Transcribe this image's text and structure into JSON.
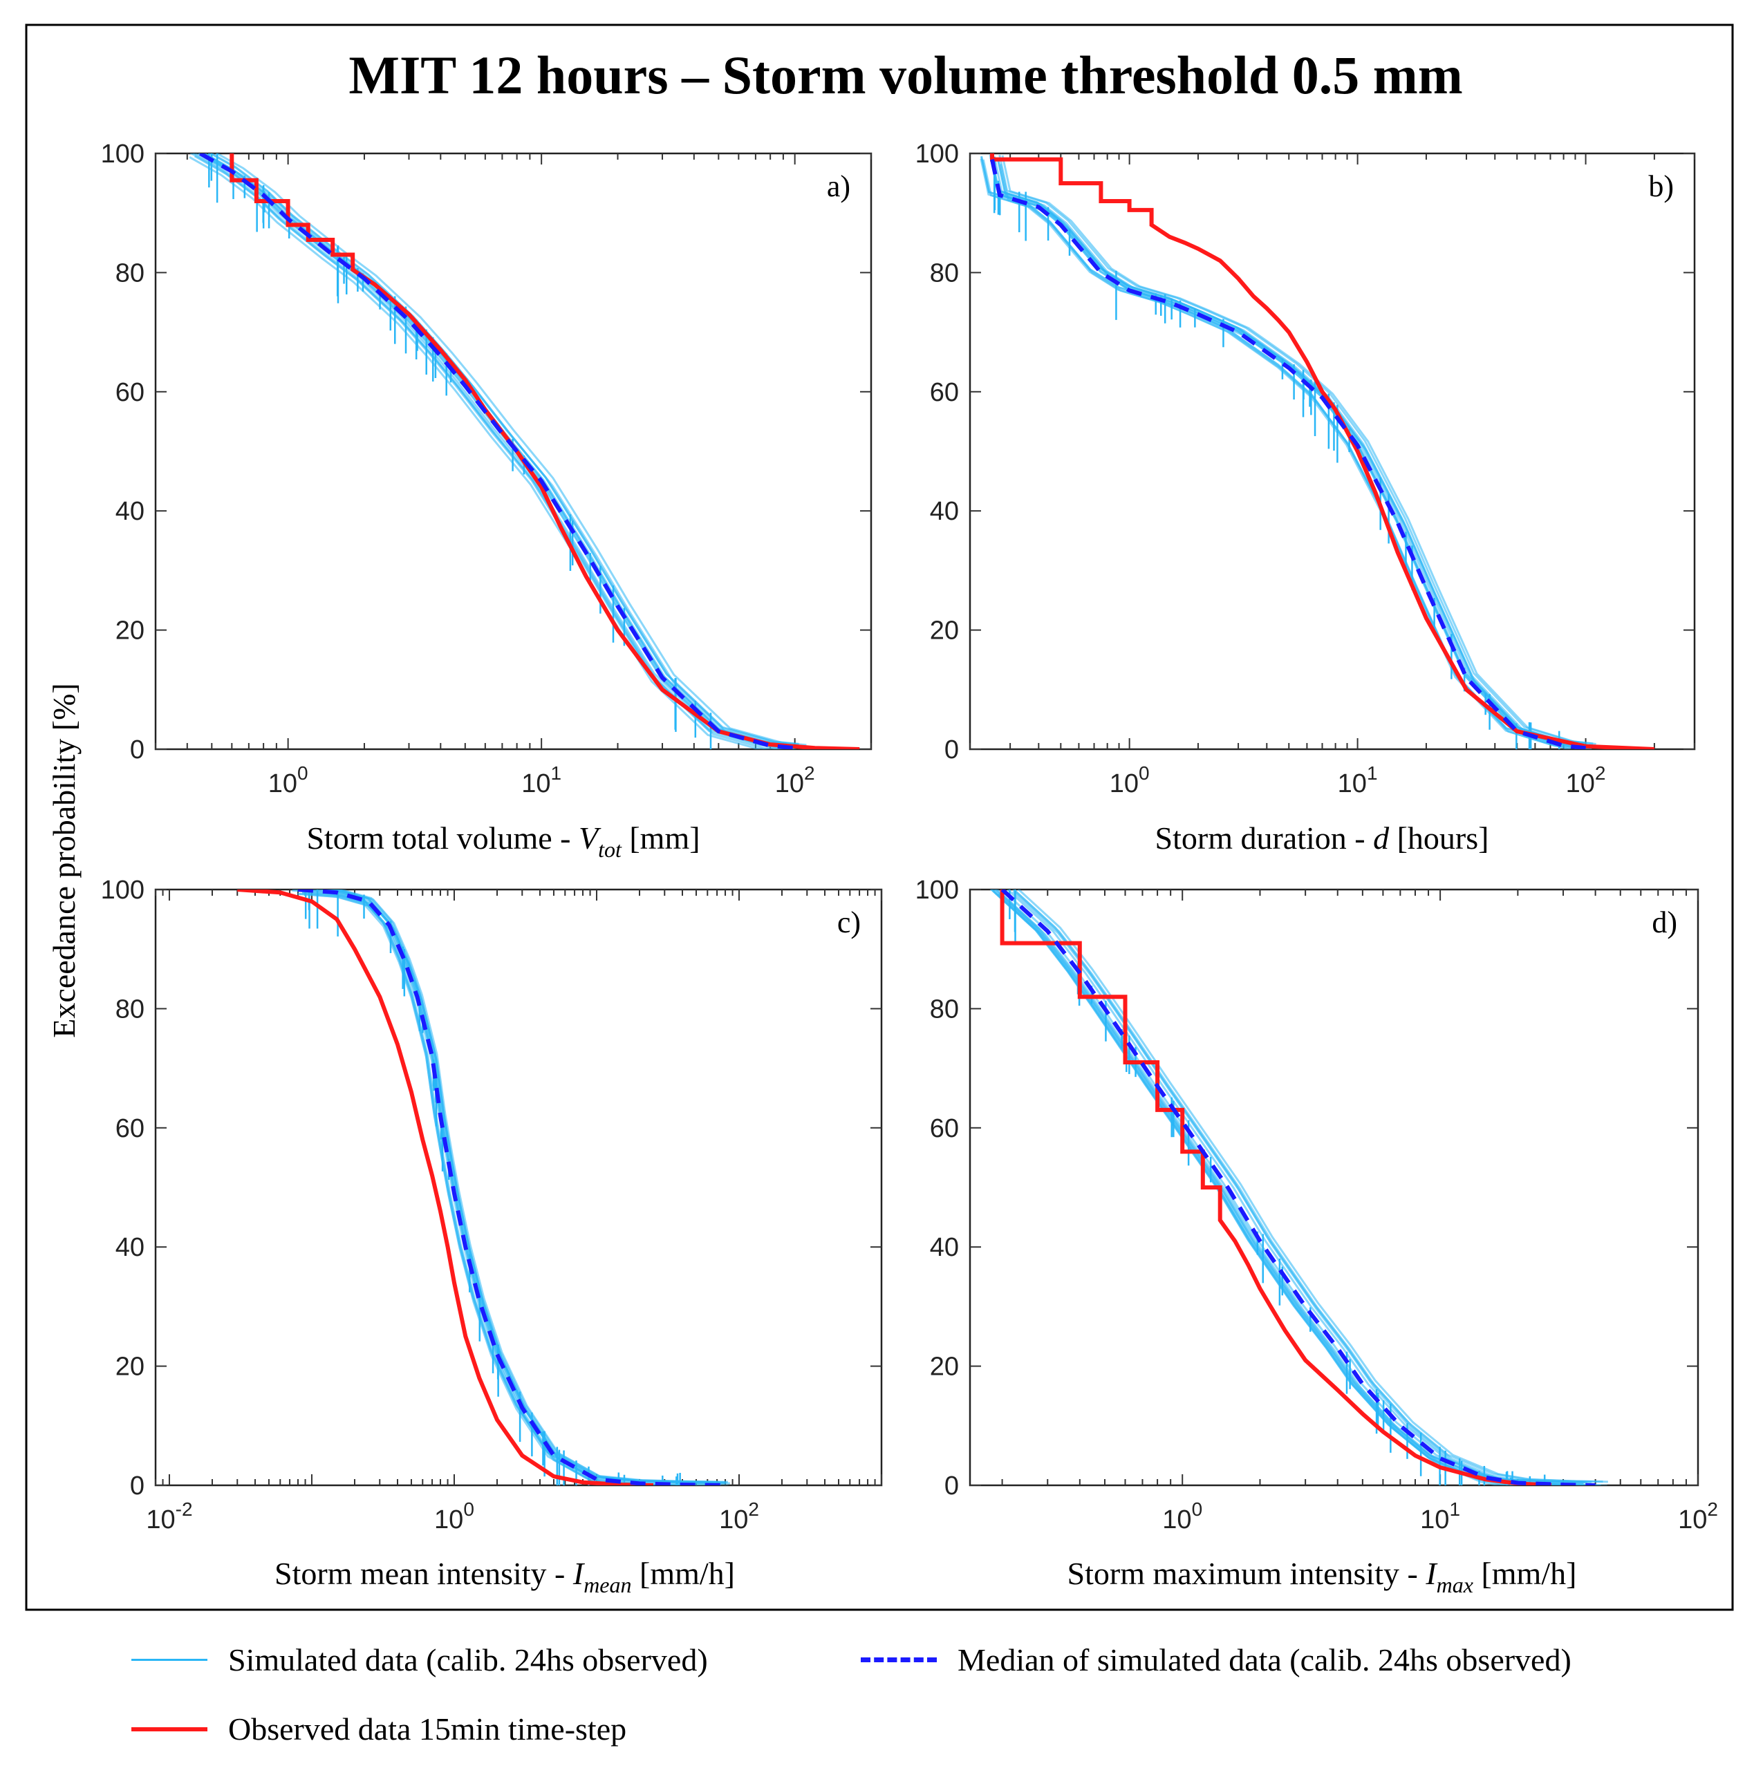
{
  "figure": {
    "title": "MIT 12 hours – Storm volume threshold 0.5 mm",
    "ylabel": "Exceedance probability [%]"
  },
  "legend": {
    "simulated": "Simulated data (calib. 24hs observed)",
    "median": "Median of simulated data (calib. 24hs observed)",
    "observed": "Observed data 15min time-step"
  },
  "colors": {
    "simulated": "#29b6f6",
    "median": "#1a1aff",
    "observed": "#ff1a1a",
    "frame": "#000000"
  },
  "chart_data": [
    {
      "type": "line",
      "panel": "a)",
      "title": "a)",
      "xscale": "log",
      "xlim": [
        0.3,
        200
      ],
      "ylim": [
        0,
        100
      ],
      "xlabel_main": "Storm total volume - ",
      "xlabel_var": "V",
      "xlabel_sub": "tot",
      "xlabel_unit": "  [mm]",
      "xticks": [
        {
          "v": 1,
          "exp": "0"
        },
        {
          "v": 10,
          "exp": "1"
        },
        {
          "v": 100,
          "exp": "2"
        }
      ],
      "yticks": [
        0,
        20,
        40,
        60,
        80,
        100
      ],
      "series": [
        {
          "name": "Observed data 15min time-step",
          "step": true,
          "x": [
            0.6,
            0.6,
            0.75,
            0.75,
            1.0,
            1.0,
            1.2,
            1.2,
            1.5,
            1.5,
            1.8,
            1.8,
            2.2,
            3.0,
            4.0,
            5.0,
            6.0,
            8.0,
            10,
            12,
            15,
            20,
            30,
            50,
            80,
            120,
            180
          ],
          "y": [
            100,
            95.5,
            95.5,
            92,
            92,
            88,
            88,
            85.5,
            85.5,
            83,
            83,
            80.5,
            78,
            73,
            67,
            62,
            57,
            50,
            44,
            37,
            29,
            20,
            10,
            3,
            0.8,
            0.2,
            0
          ]
        },
        {
          "name": "Median of simulated data (calib. 24hs observed)",
          "x": [
            0.45,
            0.6,
            0.8,
            1.0,
            1.5,
            2.0,
            3.0,
            4.0,
            5.0,
            7.0,
            10,
            15,
            20,
            30,
            50,
            80,
            100
          ],
          "y": [
            100,
            97,
            93,
            89,
            83,
            79,
            72,
            66,
            61,
            53,
            45,
            33,
            24,
            12,
            3,
            0.6,
            0.2
          ]
        }
      ]
    },
    {
      "type": "line",
      "panel": "b)",
      "title": "b)",
      "xscale": "log",
      "xlim": [
        0.2,
        300
      ],
      "ylim": [
        0,
        100
      ],
      "xlabel_main": "Storm duration - ",
      "xlabel_var": "d",
      "xlabel_sub": "",
      "xlabel_unit": "  [hours]",
      "xticks": [
        {
          "v": 1,
          "exp": "0"
        },
        {
          "v": 10,
          "exp": "1"
        },
        {
          "v": 100,
          "exp": "2"
        }
      ],
      "yticks": [
        0,
        20,
        40,
        60,
        80,
        100
      ],
      "series": [
        {
          "name": "Observed data 15min time-step",
          "step": true,
          "x": [
            0.25,
            0.25,
            0.5,
            0.5,
            0.75,
            0.75,
            1.0,
            1.0,
            1.25,
            1.25,
            1.5,
            1.75,
            2.0,
            2.5,
            3.0,
            3.5,
            4.0,
            4.5,
            5.0,
            6.0,
            7.0,
            8.0,
            10,
            12,
            15,
            20,
            30,
            50,
            100,
            200
          ],
          "y": [
            100,
            99,
            99,
            95,
            95,
            92,
            92,
            90.5,
            90.5,
            88,
            86,
            85,
            84,
            82,
            79,
            76,
            74,
            72,
            70,
            65,
            60,
            57,
            50,
            43,
            33,
            22,
            10,
            3,
            0.5,
            0
          ]
        },
        {
          "name": "Median of simulated data (calib. 24hs observed)",
          "x": [
            0.25,
            0.27,
            0.4,
            0.5,
            0.75,
            1.0,
            1.5,
            2.0,
            3.0,
            5.0,
            7.0,
            10,
            15,
            20,
            30,
            50,
            80,
            100
          ],
          "y": [
            99,
            93,
            91,
            88,
            80,
            77,
            75,
            73,
            70,
            64,
            59,
            51,
            38,
            27,
            12,
            3,
            0.6,
            0.2
          ]
        }
      ]
    },
    {
      "type": "line",
      "panel": "c)",
      "title": "c)",
      "xscale": "log",
      "xlim": [
        0.008,
        1000
      ],
      "ylim": [
        0,
        100
      ],
      "xlabel_main": "Storm mean intensity - ",
      "xlabel_var": "I",
      "xlabel_sub": "mean",
      "xlabel_unit": "  [mm/h]",
      "xticks": [
        {
          "v": 0.01,
          "exp": "-2"
        },
        {
          "v": 1,
          "exp": "0"
        },
        {
          "v": 100,
          "exp": "2"
        }
      ],
      "yticks": [
        0,
        20,
        40,
        60,
        80,
        100
      ],
      "series": [
        {
          "name": "Observed data 15min time-step",
          "x": [
            0.03,
            0.06,
            0.1,
            0.15,
            0.2,
            0.3,
            0.4,
            0.5,
            0.6,
            0.7,
            0.8,
            0.9,
            1.0,
            1.2,
            1.5,
            2.0,
            3.0,
            5.0,
            8.0,
            15,
            25
          ],
          "y": [
            100,
            99.5,
            98,
            95,
            90,
            82,
            74,
            66,
            58,
            52,
            46,
            40,
            34,
            25,
            18,
            11,
            5,
            1.5,
            0.5,
            0.1,
            0
          ]
        },
        {
          "name": "Median of simulated data (calib. 24hs observed)",
          "x": [
            0.08,
            0.15,
            0.25,
            0.35,
            0.45,
            0.55,
            0.7,
            0.8,
            0.9,
            1.0,
            1.2,
            1.5,
            2.0,
            3.0,
            5.0,
            10,
            20,
            40,
            80
          ],
          "y": [
            100,
            99.5,
            98,
            94,
            88,
            82,
            72,
            62,
            55,
            49,
            40,
            31,
            22,
            13,
            5,
            1,
            0.3,
            0.1,
            0
          ]
        }
      ]
    },
    {
      "type": "line",
      "panel": "d)",
      "title": "d)",
      "xscale": "log",
      "xlim": [
        0.15,
        100
      ],
      "ylim": [
        0,
        100
      ],
      "xlabel_main": "Storm maximum intensity - ",
      "xlabel_var": "I",
      "xlabel_sub": "max",
      "xlabel_unit": "  [mm/h]",
      "xticks": [
        {
          "v": 1,
          "exp": "0"
        },
        {
          "v": 10,
          "exp": "1"
        },
        {
          "v": 100,
          "exp": "2"
        }
      ],
      "yticks": [
        0,
        20,
        40,
        60,
        80,
        100
      ],
      "series": [
        {
          "name": "Observed data 15min time-step",
          "step": true,
          "x": [
            0.2,
            0.2,
            0.4,
            0.4,
            0.6,
            0.6,
            0.8,
            0.8,
            1.0,
            1.0,
            1.2,
            1.2,
            1.4,
            1.4,
            1.6,
            1.8,
            2.0,
            2.2,
            2.5,
            3.0,
            4.0,
            5.0,
            6.0,
            8.0,
            10,
            15,
            20,
            27
          ],
          "y": [
            100,
            91,
            91,
            82,
            82,
            71,
            71,
            63,
            63,
            56,
            56,
            50,
            50,
            44.5,
            41,
            37,
            33,
            30,
            26,
            21,
            16,
            12,
            9,
            5,
            3,
            1,
            0.3,
            0
          ]
        },
        {
          "name": "Median of simulated data (calib. 24hs observed)",
          "x": [
            0.2,
            0.3,
            0.4,
            0.5,
            0.6,
            0.8,
            1.0,
            1.5,
            2.0,
            3.0,
            4.0,
            5.0,
            7.0,
            10,
            15,
            20,
            30,
            40
          ],
          "y": [
            100,
            93,
            86,
            80,
            75,
            67,
            61,
            50,
            41,
            30,
            23,
            17,
            10,
            4.5,
            1.3,
            0.4,
            0.1,
            0
          ]
        }
      ]
    }
  ]
}
